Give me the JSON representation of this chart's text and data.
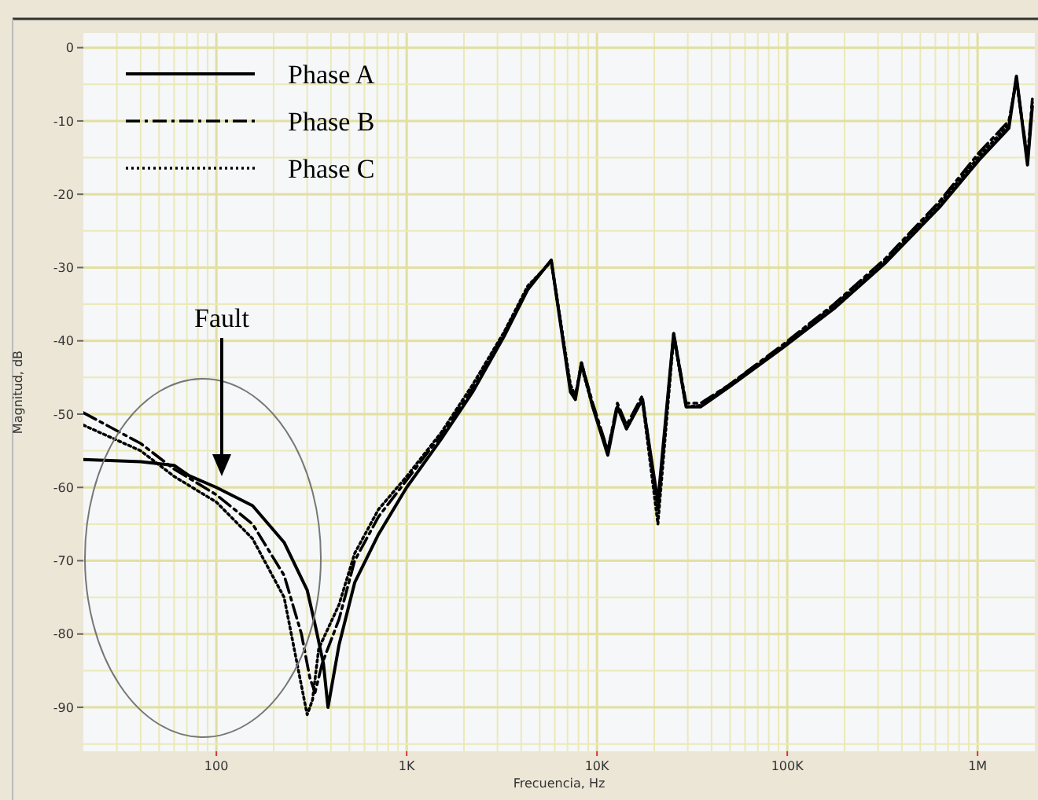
{
  "chart_data": {
    "type": "line",
    "xlabel": "Frecuencia, Hz",
    "ylabel": "Magnitud, dB",
    "log": "x",
    "xlim": [
      20,
      2000000
    ],
    "xticks": [
      {
        "value": 30,
        "label": null
      },
      {
        "value": 40,
        "label": null
      },
      {
        "value": 50,
        "label": null
      },
      {
        "value": 60,
        "label": null
      },
      {
        "value": 70,
        "label": null
      },
      {
        "value": 80,
        "label": null
      },
      {
        "value": 90,
        "label": null
      },
      {
        "value": 100,
        "label": "100"
      },
      {
        "value": 200,
        "label": null
      },
      {
        "value": 300,
        "label": null
      },
      {
        "value": 400,
        "label": null
      },
      {
        "value": 500,
        "label": null
      },
      {
        "value": 600,
        "label": null
      },
      {
        "value": 700,
        "label": null
      },
      {
        "value": 800,
        "label": null
      },
      {
        "value": 900,
        "label": null
      },
      {
        "value": 1000,
        "label": "1K"
      },
      {
        "value": 2000,
        "label": null
      },
      {
        "value": 3000,
        "label": null
      },
      {
        "value": 4000,
        "label": null
      },
      {
        "value": 5000,
        "label": null
      },
      {
        "value": 6000,
        "label": null
      },
      {
        "value": 7000,
        "label": null
      },
      {
        "value": 8000,
        "label": null
      },
      {
        "value": 9000,
        "label": null
      },
      {
        "value": 10000,
        "label": "10K"
      },
      {
        "value": 20000,
        "label": null
      },
      {
        "value": 30000,
        "label": null
      },
      {
        "value": 40000,
        "label": null
      },
      {
        "value": 50000,
        "label": null
      },
      {
        "value": 60000,
        "label": null
      },
      {
        "value": 70000,
        "label": null
      },
      {
        "value": 80000,
        "label": null
      },
      {
        "value": 90000,
        "label": null
      },
      {
        "value": 100000,
        "label": "100K"
      },
      {
        "value": 200000,
        "label": null
      },
      {
        "value": 300000,
        "label": null
      },
      {
        "value": 400000,
        "label": null
      },
      {
        "value": 500000,
        "label": null
      },
      {
        "value": 600000,
        "label": null
      },
      {
        "value": 700000,
        "label": null
      },
      {
        "value": 800000,
        "label": null
      },
      {
        "value": 900000,
        "label": null
      },
      {
        "value": 1000000,
        "label": "1M"
      }
    ],
    "ylim": [
      -96,
      2
    ],
    "yticks": [
      0,
      {
        "value": -5,
        "label": null
      },
      -10,
      {
        "value": -15,
        "label": null
      },
      -20,
      {
        "value": -25,
        "label": null
      },
      -30,
      {
        "value": -35,
        "label": null
      },
      -40,
      {
        "value": -45,
        "label": null
      },
      -50,
      {
        "value": -55,
        "label": null
      },
      -60,
      {
        "value": -65,
        "label": null
      },
      -70,
      {
        "value": -75,
        "label": null
      },
      -80,
      {
        "value": -85,
        "label": null
      },
      -90,
      {
        "value": -95,
        "label": null
      }
    ],
    "grid": true,
    "legend": "top left",
    "annotations": [
      "Fault"
    ],
    "series": [
      {
        "name": "Phase A",
        "color": "#000000",
        "line_style": "solid",
        "x": [
          20,
          40,
          60,
          72,
          100,
          155,
          227,
          300,
          332,
          365,
          386,
          441,
          533,
          711,
          1000,
          1520,
          2220,
          3250,
          4330,
          5750,
          7260,
          7700,
          8290,
          9500,
          11400,
          12800,
          14300,
          17300,
          20900,
          25300,
          29400,
          35100,
          49500,
          94000,
          176000,
          330000,
          630000,
          1020000,
          1460000,
          1600000,
          1830000,
          1940000
        ],
        "values": [
          -56.2,
          -56.5,
          -57,
          -58.4,
          -60,
          -62.5,
          -67.5,
          -74,
          -79,
          -84,
          -90,
          -81.5,
          -73,
          -66.4,
          -60,
          -53.4,
          -47,
          -39.4,
          -33,
          -29,
          -47,
          -48,
          -43,
          -49,
          -55.6,
          -49,
          -52,
          -48,
          -62,
          -39,
          -49,
          -49,
          -46.3,
          -41,
          -35.6,
          -29.3,
          -21.8,
          -15.3,
          -11,
          -3.9,
          -16,
          -8
        ]
      },
      {
        "name": "Phase B",
        "color": "#000000",
        "line_style": "dashed",
        "x": [
          20,
          40,
          60,
          100,
          155,
          227,
          280,
          310,
          330,
          360,
          441,
          533,
          711,
          1000,
          1520,
          2220,
          3250,
          4330,
          5750,
          7260,
          7700,
          8290,
          9500,
          11400,
          12800,
          14300,
          17300,
          20900,
          25300,
          29400,
          35100,
          49500,
          94000,
          176000,
          330000,
          630000,
          1020000,
          1460000,
          1600000,
          1830000,
          1940000
        ],
        "values": [
          -49.8,
          -54,
          -57.5,
          -61,
          -65,
          -72,
          -80,
          -86,
          -88,
          -84,
          -78,
          -70,
          -64,
          -59,
          -52.8,
          -46.5,
          -39,
          -32.8,
          -29,
          -46.5,
          -47.5,
          -43,
          -48.5,
          -55,
          -48.5,
          -51.5,
          -47.5,
          -63,
          -39,
          -48.5,
          -48.5,
          -46,
          -40.6,
          -35,
          -28.7,
          -21,
          -14.3,
          -10,
          -4.5,
          -15,
          -7
        ]
      },
      {
        "name": "Phase C",
        "color": "#000000",
        "line_style": "dotted",
        "x": [
          20,
          40,
          60,
          100,
          155,
          227,
          270,
          300,
          320,
          345,
          441,
          533,
          711,
          1000,
          1520,
          2220,
          3250,
          4330,
          5750,
          7260,
          7700,
          8290,
          9500,
          11400,
          12800,
          14300,
          17300,
          20900,
          25300,
          29400,
          35100,
          49500,
          94000,
          176000,
          330000,
          630000,
          1020000,
          1460000,
          1600000,
          1830000,
          1940000
        ],
        "values": [
          -51.5,
          -55,
          -58.5,
          -62,
          -67,
          -75,
          -85,
          -91,
          -89,
          -82,
          -76,
          -69,
          -63,
          -58.5,
          -52.5,
          -46,
          -38.8,
          -32.5,
          -29.2,
          -46,
          -47.5,
          -43.5,
          -49,
          -55,
          -49,
          -52,
          -48,
          -65,
          -39.5,
          -49,
          -48.8,
          -46,
          -40.8,
          -35.2,
          -29,
          -21.3,
          -14.8,
          -10.5,
          -4.2,
          -15.5,
          -7.5
        ]
      }
    ]
  }
}
